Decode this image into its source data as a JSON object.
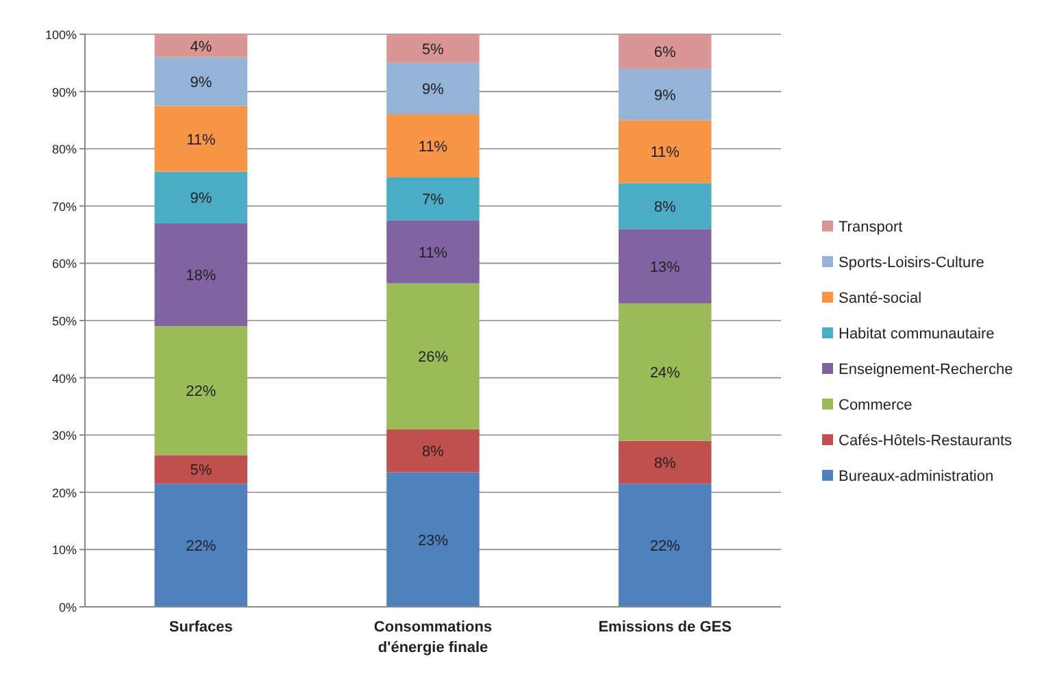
{
  "chart_data": {
    "type": "bar",
    "stacked": true,
    "categories": [
      "Surfaces",
      "Consommations d'énergie finale",
      "Emissions de GES"
    ],
    "series": [
      {
        "name": "Bureaux-administration",
        "color": "#4f81bd",
        "values": [
          21.5,
          23.5,
          21.5
        ],
        "value_labels": [
          "22%",
          "23%",
          "22%"
        ]
      },
      {
        "name": "Cafés-Hôtels-Restaurants",
        "color": "#c0504d",
        "values": [
          5,
          7.5,
          7.5
        ],
        "value_labels": [
          "5%",
          "8%",
          "8%"
        ]
      },
      {
        "name": "Commerce",
        "color": "#9bbb59",
        "values": [
          22.5,
          25.5,
          24
        ],
        "value_labels": [
          "22%",
          "26%",
          "24%"
        ]
      },
      {
        "name": "Enseignement-Recherche",
        "color": "#8064a2",
        "values": [
          18,
          11,
          13
        ],
        "value_labels": [
          "18%",
          "11%",
          "13%"
        ]
      },
      {
        "name": "Habitat communautaire",
        "color": "#4bacc6",
        "values": [
          9,
          7.5,
          8
        ],
        "value_labels": [
          "9%",
          "7%",
          "8%"
        ]
      },
      {
        "name": "Santé-social",
        "color": "#f79646",
        "values": [
          11.5,
          11,
          11
        ],
        "value_labels": [
          "11%",
          "11%",
          "11%"
        ]
      },
      {
        "name": "Sports-Loisirs-Culture",
        "color": "#95b3d7",
        "values": [
          8.5,
          9,
          9
        ],
        "value_labels": [
          "9%",
          "9%",
          "9%"
        ]
      },
      {
        "name": "Transport",
        "color": "#d99694",
        "values": [
          4,
          5,
          6
        ],
        "value_labels": [
          "4%",
          "5%",
          "6%"
        ]
      }
    ],
    "ylim": [
      0,
      100
    ],
    "yticks": [
      {
        "value": 0,
        "label": "0%"
      },
      {
        "value": 10,
        "label": "10%"
      },
      {
        "value": 20,
        "label": "20%"
      },
      {
        "value": 30,
        "label": "30%"
      },
      {
        "value": 40,
        "label": "40%"
      },
      {
        "value": 50,
        "label": "50%"
      },
      {
        "value": 60,
        "label": "60%"
      },
      {
        "value": 70,
        "label": "70%"
      },
      {
        "value": 80,
        "label": "80%"
      },
      {
        "value": 90,
        "label": "90%"
      },
      {
        "value": 100,
        "label": "100%"
      }
    ],
    "grid": "y",
    "legend": "right"
  }
}
